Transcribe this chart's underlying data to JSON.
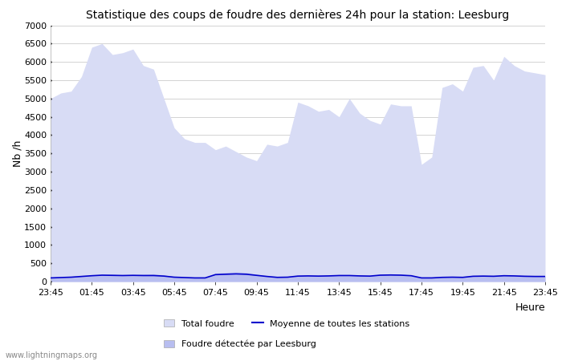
{
  "title": "Statistique des coups de foudre des dernières 24h pour la station: Leesburg",
  "xlabel": "Heure",
  "ylabel": "Nb /h",
  "ylim": [
    0,
    7000
  ],
  "yticks": [
    0,
    500,
    1000,
    1500,
    2000,
    2500,
    3000,
    3500,
    4000,
    4500,
    5000,
    5500,
    6000,
    6500,
    7000
  ],
  "x_labels": [
    "23:45",
    "01:45",
    "03:45",
    "05:45",
    "07:45",
    "09:45",
    "11:45",
    "13:45",
    "15:45",
    "17:45",
    "19:45",
    "21:45",
    "23:45"
  ],
  "background_color": "#ffffff",
  "plot_bg_color": "#ffffff",
  "grid_color": "#cccccc",
  "total_foudre_color": "#d8dcf5",
  "leesburg_color": "#b8bef0",
  "moyenne_color": "#0000cc",
  "x_values": [
    0,
    1,
    2,
    3,
    4,
    5,
    6,
    7,
    8,
    9,
    10,
    11,
    12,
    13,
    14,
    15,
    16,
    17,
    18,
    19,
    20,
    21,
    22,
    23,
    24,
    25,
    26,
    27,
    28,
    29,
    30,
    31,
    32,
    33,
    34,
    35,
    36,
    37,
    38,
    39,
    40,
    41,
    42,
    43,
    44,
    45,
    46,
    47,
    48
  ],
  "total_foudre": [
    5000,
    5150,
    5200,
    5600,
    6400,
    6500,
    6200,
    6250,
    6350,
    5900,
    5800,
    5000,
    4200,
    3900,
    3800,
    3800,
    3600,
    3700,
    3550,
    3400,
    3300,
    3750,
    3700,
    3800,
    4900,
    4800,
    4650,
    4700,
    4500,
    5000,
    4600,
    4400,
    4300,
    4850,
    4800,
    4800,
    3200,
    3400,
    5300,
    5400,
    5200,
    5850,
    5900,
    5500,
    6150,
    5900,
    5750,
    5700,
    5650
  ],
  "leesburg": [
    100,
    100,
    130,
    150,
    170,
    190,
    200,
    180,
    190,
    200,
    210,
    180,
    130,
    110,
    100,
    100,
    230,
    250,
    260,
    250,
    200,
    150,
    120,
    130,
    160,
    170,
    160,
    170,
    190,
    180,
    170,
    160,
    200,
    210,
    200,
    180,
    100,
    100,
    120,
    130,
    120,
    150,
    160,
    150,
    170,
    160,
    150,
    140,
    150
  ],
  "moyenne": [
    100,
    110,
    120,
    140,
    160,
    175,
    170,
    165,
    170,
    165,
    165,
    150,
    120,
    110,
    100,
    100,
    190,
    200,
    210,
    200,
    170,
    140,
    115,
    120,
    150,
    155,
    150,
    155,
    165,
    165,
    155,
    150,
    175,
    180,
    175,
    160,
    100,
    100,
    115,
    120,
    115,
    145,
    150,
    145,
    160,
    155,
    145,
    140,
    140
  ],
  "watermark": "www.lightningmaps.org",
  "fig_width": 7.0,
  "fig_height": 4.5,
  "dpi": 100
}
